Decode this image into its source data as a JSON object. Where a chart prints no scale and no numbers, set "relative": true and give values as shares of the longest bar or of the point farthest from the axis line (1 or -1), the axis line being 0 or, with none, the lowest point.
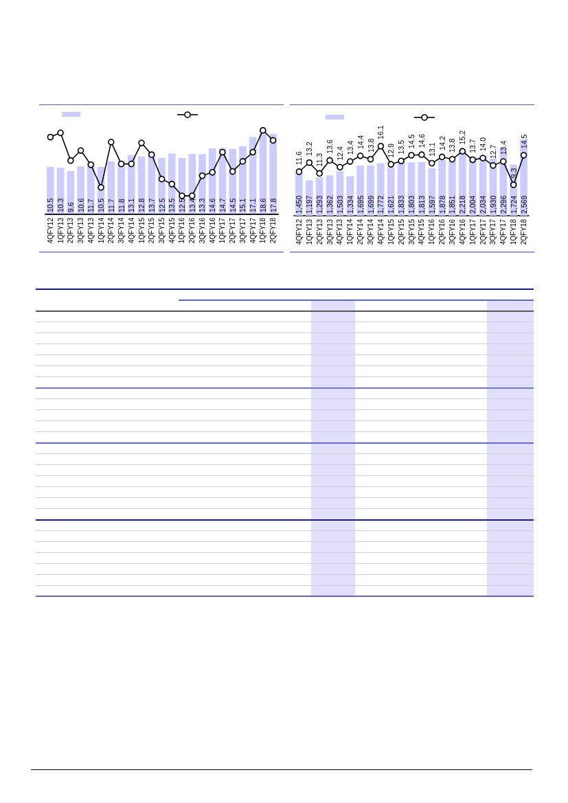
{
  "chart_data": [
    {
      "type": "bar",
      "categories": [
        "4QFY12",
        "1QFY13",
        "2QFY13",
        "3QFY13",
        "4QFY13",
        "1QFY14",
        "2QFY14",
        "3QFY14",
        "4QFY14",
        "1QFY15",
        "2QFY15",
        "3QFY15",
        "4QFY15",
        "1QFY16",
        "2QFY16",
        "3QFY16",
        "4QFY16",
        "1QFY17",
        "2QFY17",
        "3QFY17",
        "4QFY17",
        "1QFY18",
        "2QFY18"
      ],
      "tick_labels": "x",
      "color": "#ccccff",
      "values": [
        10.5,
        10.3,
        9.6,
        10.6,
        11.7,
        10.5,
        11.7,
        11.8,
        13.1,
        12.8,
        13.7,
        12.5,
        13.5,
        12.5,
        13.4,
        13.3,
        14.6,
        14.7,
        14.5,
        15.1,
        17.1,
        18.6,
        17.8
      ],
      "value_labels": [
        "10.5",
        "10.3",
        "9.6",
        "10.6",
        "11.7",
        "10.5",
        "11.7",
        "11.8",
        "13.1",
        "12.8",
        "13.7",
        "12.5",
        "13.5",
        "12.5",
        "13.4",
        "13.3",
        "14.6",
        "14.7",
        "14.5",
        "15.1",
        "17.1",
        "18.6",
        "17.8"
      ]
    },
    {
      "type": "line",
      "categories": [
        null,
        null,
        null,
        null,
        null,
        null,
        null,
        null,
        null,
        null,
        null,
        null,
        null,
        null,
        null,
        null,
        null,
        null,
        null,
        null,
        null,
        null,
        null
      ],
      "relative": true,
      "marker": "circle",
      "color": "#000000",
      "values": [
        0.92,
        0.97,
        0.64,
        0.76,
        0.59,
        0.32,
        0.86,
        0.6,
        0.6,
        0.85,
        0.71,
        0.42,
        0.36,
        0.22,
        0.22,
        0.46,
        0.5,
        0.74,
        0.51,
        0.63,
        0.74,
        1,
        0.88
      ]
    },
    {
      "type": "bar",
      "categories": [
        "4QFY12",
        "1QFY13",
        "2QFY13",
        "3QFY13",
        "4QFY13",
        "1QFY14",
        "2QFY14",
        "3QFY14",
        "4QFY14",
        "1QFY15",
        "2QFY15",
        "3QFY15",
        "4QFY15",
        "1QFY16",
        "2QFY16",
        "3QFY16",
        "4QFY16",
        "1QFY17",
        "2QFY17",
        "3QFY17",
        "4QFY17",
        "1QFY18",
        "2QFY18"
      ],
      "marker": "circle",
      "tick_labels": "x",
      "series": [
        {
          "color": "#ccccff",
          "values": [
            1450,
            1197,
            1293,
            1362,
            1503,
            1334,
            1695,
            1699,
            1772,
            1621,
            1833,
            1803,
            1813,
            1597,
            1878,
            1851,
            2218,
            2004,
            2034,
            1930,
            2296,
            1724,
            2569
          ],
          "value_labels": [
            "1,450",
            "1,197",
            "1,293",
            "1,362",
            "1,503",
            "1,334",
            "1,695",
            "1,699",
            "1,772",
            "1,621",
            "1,833",
            "1,803",
            "1,813",
            "1,597",
            "1,878",
            "1,851",
            "2,218",
            "2,004",
            "2,034",
            "1,930",
            "2,296",
            "1,724",
            "2,569"
          ]
        },
        {
          "type": "line",
          "axis": "y2",
          "color": "#000000",
          "values": [
            11.6,
            13.2,
            11.3,
            13.6,
            12.4,
            13.4,
            14.4,
            13.8,
            16.1,
            12.9,
            13.5,
            14.5,
            14.6,
            13.1,
            14.2,
            13.8,
            15.2,
            13.7,
            14.0,
            12.7,
            13.4,
            9.3,
            14.5
          ],
          "value_labels": [
            "11.6",
            "13.2",
            "11.3",
            "13.6",
            "12.4",
            "13.4",
            "14.4",
            "13.8",
            "16.1",
            "12.9",
            "13.5",
            "14.5",
            "14.6",
            "13.1",
            "14.2",
            "13.8",
            "15.2",
            "13.7",
            "14.0",
            "12.7",
            "13.4",
            "9.3",
            "14.5"
          ]
        }
      ]
    }
  ]
}
